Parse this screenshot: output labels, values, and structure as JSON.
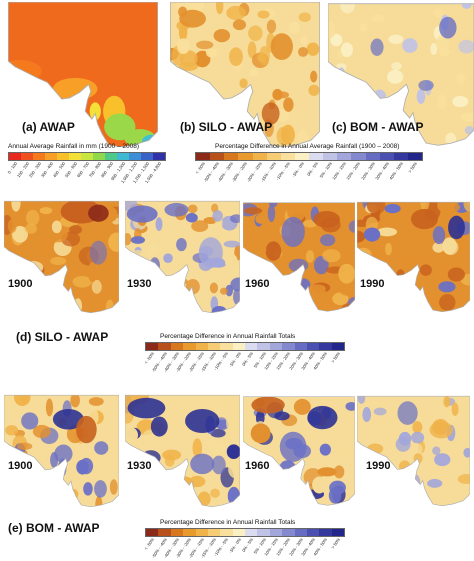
{
  "panels": {
    "a": "(a) AWAP",
    "b": "(b) SILO - AWAP",
    "c": "(c) BOM - AWAP",
    "d": "(d) SILO - AWAP",
    "e": "(e) BOM - AWAP"
  },
  "years": [
    "1900",
    "1930",
    "1960",
    "1990"
  ],
  "legend_rain": {
    "title": "Annual Average Rainfall in mm (1900 – 2008)",
    "ticks": [
      "0 - 100",
      "100 - 200",
      "200 - 300",
      "300 - 400",
      "400 - 500",
      "500 - 600",
      "600 - 700",
      "700 - 800",
      "800 - 900",
      "900 - 1,000",
      "1,000 - 1,200",
      "1,200 - 1,500",
      "1,500 - 4,800"
    ],
    "colors": [
      "#e8281e",
      "#f0501e",
      "#f57a1e",
      "#f79f26",
      "#f8c12c",
      "#f3e13a",
      "#c9e640",
      "#8fd94a",
      "#4fc98a",
      "#3fb8d2",
      "#3c8fd6",
      "#3a63c8",
      "#3030a8"
    ]
  },
  "legend_diff_avg": {
    "title": "Percentage Difference in Annual Average Rainfall (1900 – 2008)",
    "ticks": [
      "< -50%",
      "-50% - -40%",
      "-40% - -30%",
      "-30% - -20%",
      "-20% - -15%",
      "-15% - -10%",
      "-10% - -5%",
      "-5% - 0%",
      "0% - 5%",
      "5% - 10%",
      "10% - 15%",
      "15% - 20%",
      "20% - 30%",
      "30% - 40%",
      "40% - 50%",
      "> 50%"
    ],
    "colors": [
      "#8c2a1a",
      "#b8501c",
      "#d8781e",
      "#e89a2c",
      "#f0b34a",
      "#f6cc74",
      "#f9e09c",
      "#fbf0c4",
      "#dcdcf0",
      "#c0c2e6",
      "#a2a6db",
      "#8489cf",
      "#666cc2",
      "#4a4fb2",
      "#33379e",
      "#22258a"
    ]
  },
  "legend_diff_totals": {
    "title": "Percentage Difference in Annual Rainfall Totals",
    "ticks": [
      "< -50%",
      "-50% - -40%",
      "-40% - -30%",
      "-30% - -20%",
      "-20% - -15%",
      "-15% - -10%",
      "-10% - -5%",
      "-5% - 0%",
      "0% - 5%",
      "5% - 10%",
      "10% - 15%",
      "15% - 20%",
      "20% - 30%",
      "30% - 40%",
      "40% - 50%",
      "> 50%"
    ],
    "colors": [
      "#8c2a1a",
      "#b8501c",
      "#d8781e",
      "#e89a2c",
      "#f0b34a",
      "#f6cc74",
      "#f9e09c",
      "#fbf0c4",
      "#dcdcf0",
      "#c0c2e6",
      "#a2a6db",
      "#8489cf",
      "#666cc2",
      "#4a4fb2",
      "#33379e",
      "#22258a"
    ]
  },
  "colors": {
    "awap_base": "#f06a1e",
    "diff_base": "#f6dc98",
    "orange": "#e3902e",
    "deep_orange": "#c8621e",
    "blue": "#6a70c6",
    "deep_blue": "#2e3294",
    "sea": "#ffffff",
    "coast_green": "#9ad84a",
    "coast_cyan": "#3fc0d0"
  }
}
